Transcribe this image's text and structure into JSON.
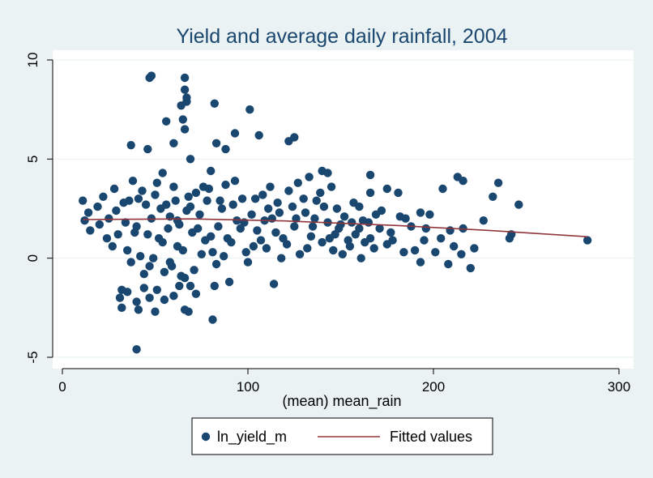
{
  "chart_data": {
    "type": "scatter",
    "title": "Yield and average daily rainfall, 2004",
    "xlabel": "(mean) mean_rain",
    "ylabel": "",
    "xlim": [
      0,
      300
    ],
    "ylim": [
      -5,
      10
    ],
    "xticks": [
      0,
      100,
      200,
      300
    ],
    "yticks": [
      -5,
      0,
      5,
      10
    ],
    "grid": true,
    "legend_position": "bottom",
    "colors": {
      "scatter": "#1a476f",
      "fitted": "#90353b",
      "title": "#1a476f",
      "background": "#eaf2f3",
      "plot_background": "#ffffff",
      "grid": "#eaf2f3"
    },
    "series": [
      {
        "name": "ln_yield_m",
        "kind": "scatter",
        "points": [
          [
            48,
            9.2
          ],
          [
            47,
            9.1
          ],
          [
            66,
            9.1
          ],
          [
            66,
            8.5
          ],
          [
            67,
            8.1
          ],
          [
            67,
            7.9
          ],
          [
            64,
            7.7
          ],
          [
            82,
            7.8
          ],
          [
            101,
            7.5
          ],
          [
            65,
            7.0
          ],
          [
            56,
            6.9
          ],
          [
            66,
            6.5
          ],
          [
            93,
            6.3
          ],
          [
            106,
            6.2
          ],
          [
            125,
            6.1
          ],
          [
            122,
            5.9
          ],
          [
            60,
            5.8
          ],
          [
            37,
            5.7
          ],
          [
            46,
            5.5
          ],
          [
            83,
            5.8
          ],
          [
            88,
            5.5
          ],
          [
            69,
            5.0
          ],
          [
            54,
            4.3
          ],
          [
            80,
            4.4
          ],
          [
            140,
            4.4
          ],
          [
            143,
            4.3
          ],
          [
            166,
            4.2
          ],
          [
            133,
            4.1
          ],
          [
            213,
            4.1
          ],
          [
            216,
            3.9
          ],
          [
            235,
            3.8
          ],
          [
            145,
            3.6
          ],
          [
            175,
            3.5
          ],
          [
            205,
            3.5
          ],
          [
            166,
            3.3
          ],
          [
            181,
            3.3
          ],
          [
            232,
            3.1
          ],
          [
            157,
            2.8
          ],
          [
            246,
            2.7
          ],
          [
            160,
            2.6
          ],
          [
            172,
            2.4
          ],
          [
            193,
            2.3
          ],
          [
            198,
            2.2
          ],
          [
            182,
            2.1
          ],
          [
            185,
            2.0
          ],
          [
            227,
            1.9
          ],
          [
            165,
            1.8
          ],
          [
            150,
            1.7
          ],
          [
            196,
            1.5
          ],
          [
            216,
            1.5
          ],
          [
            209,
            1.4
          ],
          [
            177,
            1.3
          ],
          [
            242,
            1.2
          ],
          [
            204,
            1.0
          ],
          [
            195,
            0.9
          ],
          [
            241,
            1.0
          ],
          [
            283,
            0.9
          ],
          [
            175,
            0.7
          ],
          [
            211,
            0.6
          ],
          [
            222,
            0.5
          ],
          [
            190,
            0.4
          ],
          [
            201,
            0.3
          ],
          [
            215,
            0.2
          ],
          [
            161,
            0.0
          ],
          [
            193,
            -0.2
          ],
          [
            208,
            -0.3
          ],
          [
            220,
            -0.5
          ],
          [
            114,
            -1.3
          ],
          [
            32,
            -1.6
          ],
          [
            35,
            -1.7
          ],
          [
            44,
            -1.5
          ],
          [
            51,
            -1.6
          ],
          [
            31,
            -2.0
          ],
          [
            40,
            -2.2
          ],
          [
            47,
            -2.0
          ],
          [
            55,
            -2.1
          ],
          [
            60,
            -1.9
          ],
          [
            63,
            -1.4
          ],
          [
            69,
            -1.4
          ],
          [
            72,
            -1.8
          ],
          [
            82,
            -1.4
          ],
          [
            90,
            -1.2
          ],
          [
            32,
            -2.5
          ],
          [
            41,
            -2.6
          ],
          [
            50,
            -2.7
          ],
          [
            66,
            -2.6
          ],
          [
            68,
            -2.7
          ],
          [
            81,
            -3.1
          ],
          [
            40,
            -4.6
          ],
          [
            11,
            2.9
          ],
          [
            12,
            1.9
          ],
          [
            14,
            2.3
          ],
          [
            15,
            1.4
          ],
          [
            19,
            2.6
          ],
          [
            20,
            1.7
          ],
          [
            22,
            3.1
          ],
          [
            25,
            2.0
          ],
          [
            28,
            3.5
          ],
          [
            30,
            1.2
          ],
          [
            33,
            2.8
          ],
          [
            35,
            0.4
          ],
          [
            38,
            3.9
          ],
          [
            40,
            1.6
          ],
          [
            42,
            0.1
          ],
          [
            45,
            2.7
          ],
          [
            47,
            -0.4
          ],
          [
            50,
            3.2
          ],
          [
            52,
            1.0
          ],
          [
            55,
            -0.7
          ],
          [
            58,
            2.1
          ],
          [
            60,
            3.6
          ],
          [
            62,
            0.6
          ],
          [
            64,
            -0.9
          ],
          [
            67,
            2.4
          ],
          [
            70,
            1.3
          ],
          [
            72,
            3.3
          ],
          [
            75,
            0.2
          ],
          [
            78,
            2.9
          ],
          [
            80,
            1.1
          ],
          [
            83,
            -0.3
          ],
          [
            86,
            2.5
          ],
          [
            88,
            3.7
          ],
          [
            91,
            0.8
          ],
          [
            94,
            1.9
          ],
          [
            97,
            3.0
          ],
          [
            99,
            0.3
          ],
          [
            102,
            2.2
          ],
          [
            105,
            1.4
          ],
          [
            108,
            3.2
          ],
          [
            110,
            0.5
          ],
          [
            113,
            2.0
          ],
          [
            116,
            2.8
          ],
          [
            119,
            1.0
          ],
          [
            122,
            3.4
          ],
          [
            125,
            1.6
          ],
          [
            128,
            0.2
          ],
          [
            131,
            2.3
          ],
          [
            134,
            1.1
          ],
          [
            137,
            2.9
          ],
          [
            140,
            0.8
          ],
          [
            143,
            1.8
          ],
          [
            146,
            0.4
          ],
          [
            149,
            1.5
          ],
          [
            152,
            2.1
          ],
          [
            155,
            0.6
          ],
          [
            158,
            1.2
          ],
          [
            162,
            1.9
          ],
          [
            168,
            0.5
          ],
          [
            171,
            1.5
          ],
          [
            178,
            0.9
          ],
          [
            184,
            0.3
          ],
          [
            188,
            1.6
          ],
          [
            24,
            1.0
          ],
          [
            27,
            0.6
          ],
          [
            29,
            2.4
          ],
          [
            34,
            1.8
          ],
          [
            37,
            -0.2
          ],
          [
            43,
            3.4
          ],
          [
            46,
            1.2
          ],
          [
            49,
            0.0
          ],
          [
            53,
            2.5
          ],
          [
            57,
            1.5
          ],
          [
            59,
            -0.4
          ],
          [
            61,
            2.9
          ],
          [
            63,
            1.7
          ],
          [
            65,
            0.4
          ],
          [
            68,
            3.1
          ],
          [
            71,
            -0.6
          ],
          [
            74,
            2.2
          ],
          [
            77,
            0.9
          ],
          [
            79,
            3.5
          ],
          [
            84,
            1.6
          ],
          [
            87,
            0.1
          ],
          [
            92,
            2.7
          ],
          [
            96,
            1.5
          ],
          [
            100,
            -0.2
          ],
          [
            104,
            3.0
          ],
          [
            107,
            0.9
          ],
          [
            111,
            2.5
          ],
          [
            115,
            1.3
          ],
          [
            118,
            0.0
          ],
          [
            124,
            2.6
          ],
          [
            127,
            3.8
          ],
          [
            132,
            0.5
          ],
          [
            136,
            2.0
          ],
          [
            139,
            3.3
          ],
          [
            144,
            1.0
          ],
          [
            148,
            2.5
          ],
          [
            151,
            0.2
          ],
          [
            156,
            1.8
          ],
          [
            163,
            0.8
          ],
          [
            169,
            2.2
          ],
          [
            36,
            2.9
          ],
          [
            39,
            1.3
          ],
          [
            41,
            3.0
          ],
          [
            44,
            -0.8
          ],
          [
            48,
            2.0
          ],
          [
            51,
            3.8
          ],
          [
            54,
            0.8
          ],
          [
            56,
            2.7
          ],
          [
            58,
            -0.2
          ],
          [
            62,
            1.9
          ],
          [
            66,
            -1.0
          ],
          [
            69,
            2.6
          ],
          [
            73,
            1.5
          ],
          [
            76,
            3.6
          ],
          [
            81,
            0.3
          ],
          [
            85,
            2.9
          ],
          [
            89,
            1.0
          ],
          [
            93,
            3.9
          ],
          [
            98,
            1.8
          ],
          [
            103,
            0.6
          ],
          [
            109,
            1.9
          ],
          [
            112,
            3.6
          ],
          [
            117,
            2.3
          ],
          [
            121,
            0.7
          ],
          [
            126,
            2.0
          ],
          [
            130,
            3.0
          ],
          [
            135,
            1.6
          ],
          [
            141,
            2.6
          ],
          [
            147,
            1.2
          ],
          [
            154,
            0.9
          ],
          [
            160,
            1.5
          ],
          [
            166,
            1.0
          ]
        ]
      },
      {
        "name": "Fitted values",
        "kind": "line",
        "points": [
          [
            11,
            1.95
          ],
          [
            70,
            1.98
          ],
          [
            120,
            1.88
          ],
          [
            180,
            1.65
          ],
          [
            230,
            1.4
          ],
          [
            283,
            1.08
          ]
        ]
      }
    ]
  }
}
